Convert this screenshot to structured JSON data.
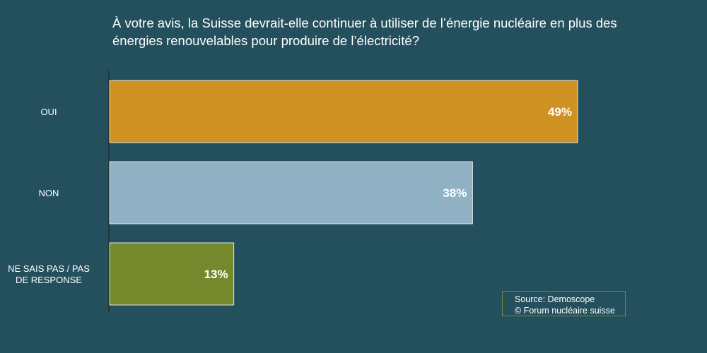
{
  "title_line1": "À votre avis, la Suisse devrait-elle continuer à utiliser de l’énergie nucléaire en plus des",
  "title_line2": "énergies renouvelables pour produire de l’électricité?",
  "source": {
    "line1": "Source: Demoscope",
    "line2": "© Forum nucléaire suisse"
  },
  "colors": {
    "background": "#24505d",
    "oui": "#cf9121",
    "non": "#8fb1c3",
    "ne_sais_pas": "#75882c",
    "axis": "#1a1a1a"
  },
  "chart_data": {
    "type": "bar",
    "orientation": "horizontal",
    "categories": [
      [
        "OUI"
      ],
      [
        "NON"
      ],
      [
        "NE SAIS PAS / PAS",
        "DE RESPONSE"
      ]
    ],
    "values": [
      49,
      38,
      13
    ],
    "data_labels": [
      "49%",
      "38%",
      "13%"
    ],
    "xlim": [
      0,
      100
    ],
    "grid": false,
    "legend": "none"
  }
}
